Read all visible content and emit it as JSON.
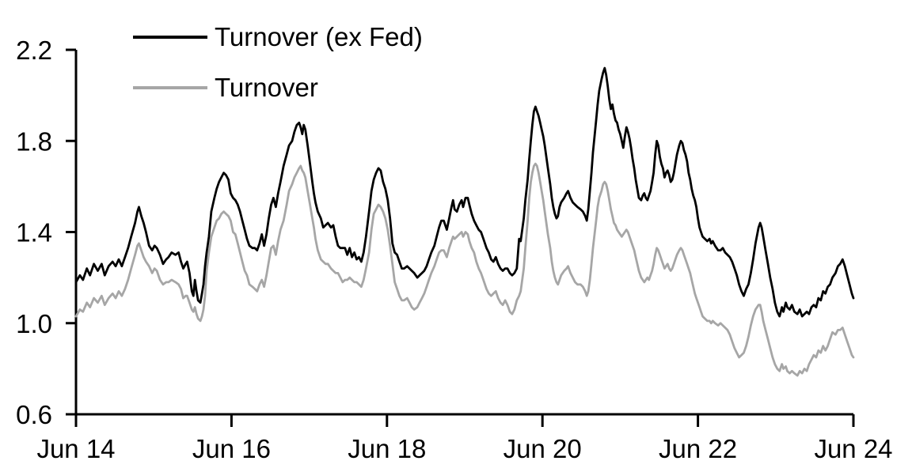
{
  "chart_data": {
    "type": "line",
    "title": "",
    "xlabel": "",
    "ylabel": "",
    "grid": false,
    "legend_position": "top-left-inside",
    "x_axis": {
      "unit": "years since Jun 2014",
      "tick_positions": [
        0,
        2,
        4,
        6,
        8,
        10
      ],
      "tick_labels": [
        "Jun 14",
        "Jun 16",
        "Jun 18",
        "Jun 20",
        "Jun 22",
        "Jun 24"
      ]
    },
    "y_axis": {
      "range": [
        0.6,
        2.2
      ],
      "tick_values": [
        0.6,
        1.0,
        1.4,
        1.8,
        2.2
      ],
      "tick_labels": [
        "0.6",
        "1.0",
        "1.4",
        "1.8",
        "2.2"
      ]
    },
    "x": [
      0,
      0.05,
      0.09,
      0.14,
      0.18,
      0.23,
      0.28,
      0.33,
      0.37,
      0.42,
      0.47,
      0.51,
      0.55,
      0.59,
      0.63,
      0.67,
      0.71,
      0.76,
      0.79,
      0.81,
      0.84,
      0.87,
      0.9,
      0.94,
      0.98,
      1.01,
      1.04,
      1.08,
      1.12,
      1.16,
      1.19,
      1.23,
      1.28,
      1.32,
      1.35,
      1.38,
      1.41,
      1.43,
      1.46,
      1.49,
      1.51,
      1.53,
      1.55,
      1.57,
      1.6,
      1.62,
      1.64,
      1.66,
      1.68,
      1.71,
      1.74,
      1.78,
      1.81,
      1.84,
      1.87,
      1.9,
      1.93,
      1.96,
      1.99,
      2.02,
      2.05,
      2.08,
      2.11,
      2.14,
      2.17,
      2.2,
      2.23,
      2.27,
      2.3,
      2.33,
      2.36,
      2.39,
      2.42,
      2.45,
      2.48,
      2.51,
      2.54,
      2.57,
      2.6,
      2.63,
      2.67,
      2.71,
      2.74,
      2.78,
      2.81,
      2.84,
      2.87,
      2.89,
      2.91,
      2.93,
      2.95,
      2.98,
      3.01,
      3.04,
      3.06,
      3.08,
      3.11,
      3.15,
      3.18,
      3.21,
      3.24,
      3.28,
      3.31,
      3.34,
      3.37,
      3.4,
      3.43,
      3.46,
      3.49,
      3.52,
      3.55,
      3.58,
      3.61,
      3.64,
      3.67,
      3.7,
      3.73,
      3.77,
      3.8,
      3.83,
      3.86,
      3.89,
      3.92,
      3.95,
      3.98,
      4.01,
      4.04,
      4.07,
      4.1,
      4.13,
      4.16,
      4.19,
      4.22,
      4.26,
      4.29,
      4.32,
      4.35,
      4.39,
      4.42,
      4.45,
      4.48,
      4.51,
      4.54,
      4.57,
      4.61,
      4.64,
      4.67,
      4.7,
      4.73,
      4.77,
      4.8,
      4.83,
      4.85,
      4.87,
      4.9,
      4.93,
      4.96,
      4.98,
      5.01,
      5.04,
      5.06,
      5.09,
      5.12,
      5.15,
      5.18,
      5.21,
      5.24,
      5.28,
      5.31,
      5.34,
      5.37,
      5.4,
      5.43,
      5.46,
      5.49,
      5.52,
      5.55,
      5.58,
      5.61,
      5.64,
      5.67,
      5.7,
      5.72,
      5.76,
      5.78,
      5.81,
      5.83,
      5.85,
      5.87,
      5.89,
      5.91,
      5.93,
      5.95,
      5.97,
      5.99,
      6.01,
      6.03,
      6.05,
      6.07,
      6.1,
      6.12,
      6.14,
      6.16,
      6.18,
      6.2,
      6.22,
      6.24,
      6.28,
      6.31,
      6.33,
      6.36,
      6.39,
      6.42,
      6.45,
      6.49,
      6.52,
      6.55,
      6.57,
      6.59,
      6.61,
      6.63,
      6.65,
      6.67,
      6.69,
      6.71,
      6.73,
      6.76,
      6.78,
      6.8,
      6.82,
      6.84,
      6.86,
      6.88,
      6.9,
      6.92,
      6.94,
      6.96,
      6.98,
      7,
      7.02,
      7.04,
      7.06,
      7.08,
      7.1,
      7.12,
      7.14,
      7.16,
      7.18,
      7.2,
      7.22,
      7.24,
      7.27,
      7.29,
      7.31,
      7.33,
      7.35,
      7.37,
      7.39,
      7.41,
      7.43,
      7.45,
      7.47,
      7.49,
      7.51,
      7.53,
      7.55,
      7.57,
      7.59,
      7.61,
      7.63,
      7.65,
      7.67,
      7.69,
      7.71,
      7.73,
      7.76,
      7.78,
      7.8,
      7.82,
      7.84,
      7.86,
      7.88,
      7.9,
      7.92,
      7.94,
      7.96,
      7.98,
      8,
      8.02,
      8.04,
      8.06,
      8.09,
      8.12,
      8.15,
      8.17,
      8.19,
      8.22,
      8.26,
      8.29,
      8.32,
      8.35,
      8.38,
      8.41,
      8.44,
      8.47,
      8.5,
      8.53,
      8.56,
      8.59,
      8.62,
      8.65,
      8.68,
      8.71,
      8.74,
      8.78,
      8.8,
      8.82,
      8.84,
      8.87,
      8.9,
      8.93,
      8.96,
      8.99,
      9.02,
      9.05,
      9.08,
      9.1,
      9.13,
      9.15,
      9.18,
      9.21,
      9.24,
      9.28,
      9.31,
      9.34,
      9.37,
      9.4,
      9.43,
      9.46,
      9.49,
      9.52,
      9.55,
      9.58,
      9.61,
      9.64,
      9.67,
      9.7,
      9.73,
      9.77,
      9.8,
      9.83,
      9.86,
      9.89,
      9.92,
      9.95,
      9.98,
      10
    ],
    "series": [
      {
        "name": "Turnover (ex Fed)",
        "color": "#000000",
        "values": [
          1.18,
          1.21,
          1.19,
          1.24,
          1.21,
          1.26,
          1.23,
          1.26,
          1.21,
          1.25,
          1.27,
          1.25,
          1.28,
          1.25,
          1.29,
          1.33,
          1.38,
          1.44,
          1.49,
          1.51,
          1.47,
          1.44,
          1.4,
          1.34,
          1.32,
          1.34,
          1.33,
          1.3,
          1.26,
          1.28,
          1.29,
          1.31,
          1.3,
          1.31,
          1.27,
          1.24,
          1.26,
          1.27,
          1.22,
          1.14,
          1.12,
          1.19,
          1.14,
          1.1,
          1.09,
          1.13,
          1.17,
          1.25,
          1.31,
          1.38,
          1.49,
          1.55,
          1.59,
          1.62,
          1.64,
          1.66,
          1.65,
          1.63,
          1.57,
          1.55,
          1.54,
          1.52,
          1.49,
          1.45,
          1.41,
          1.37,
          1.34,
          1.33,
          1.33,
          1.32,
          1.35,
          1.39,
          1.34,
          1.39,
          1.46,
          1.52,
          1.55,
          1.51,
          1.57,
          1.62,
          1.69,
          1.74,
          1.78,
          1.8,
          1.84,
          1.87,
          1.88,
          1.86,
          1.83,
          1.87,
          1.85,
          1.78,
          1.7,
          1.62,
          1.57,
          1.53,
          1.49,
          1.46,
          1.42,
          1.43,
          1.44,
          1.42,
          1.43,
          1.38,
          1.34,
          1.33,
          1.33,
          1.33,
          1.3,
          1.33,
          1.29,
          1.31,
          1.28,
          1.29,
          1.27,
          1.31,
          1.38,
          1.49,
          1.58,
          1.63,
          1.66,
          1.68,
          1.67,
          1.62,
          1.59,
          1.54,
          1.46,
          1.35,
          1.31,
          1.3,
          1.27,
          1.24,
          1.24,
          1.25,
          1.24,
          1.23,
          1.22,
          1.2,
          1.21,
          1.22,
          1.23,
          1.25,
          1.28,
          1.31,
          1.34,
          1.38,
          1.42,
          1.45,
          1.45,
          1.41,
          1.46,
          1.51,
          1.54,
          1.5,
          1.49,
          1.52,
          1.54,
          1.51,
          1.55,
          1.55,
          1.52,
          1.48,
          1.45,
          1.43,
          1.41,
          1.4,
          1.37,
          1.33,
          1.31,
          1.28,
          1.27,
          1.29,
          1.26,
          1.24,
          1.23,
          1.24,
          1.24,
          1.22,
          1.21,
          1.22,
          1.24,
          1.37,
          1.36,
          1.46,
          1.54,
          1.63,
          1.72,
          1.8,
          1.87,
          1.93,
          1.95,
          1.93,
          1.91,
          1.88,
          1.85,
          1.82,
          1.78,
          1.73,
          1.68,
          1.61,
          1.55,
          1.51,
          1.48,
          1.46,
          1.47,
          1.51,
          1.53,
          1.55,
          1.57,
          1.58,
          1.55,
          1.53,
          1.52,
          1.51,
          1.5,
          1.49,
          1.47,
          1.45,
          1.5,
          1.58,
          1.66,
          1.75,
          1.82,
          1.89,
          1.96,
          2.02,
          2.07,
          2.1,
          2.12,
          2.09,
          2.04,
          1.98,
          1.94,
          1.96,
          1.92,
          1.89,
          1.88,
          1.85,
          1.83,
          1.8,
          1.77,
          1.82,
          1.86,
          1.84,
          1.81,
          1.77,
          1.72,
          1.68,
          1.63,
          1.59,
          1.55,
          1.54,
          1.56,
          1.57,
          1.55,
          1.54,
          1.56,
          1.58,
          1.62,
          1.66,
          1.74,
          1.8,
          1.78,
          1.73,
          1.7,
          1.68,
          1.64,
          1.66,
          1.67,
          1.65,
          1.62,
          1.63,
          1.66,
          1.7,
          1.74,
          1.78,
          1.8,
          1.79,
          1.76,
          1.74,
          1.71,
          1.66,
          1.63,
          1.59,
          1.56,
          1.54,
          1.51,
          1.46,
          1.42,
          1.4,
          1.38,
          1.37,
          1.36,
          1.37,
          1.35,
          1.36,
          1.34,
          1.32,
          1.32,
          1.33,
          1.31,
          1.3,
          1.29,
          1.27,
          1.24,
          1.21,
          1.17,
          1.14,
          1.12,
          1.15,
          1.17,
          1.22,
          1.28,
          1.35,
          1.42,
          1.44,
          1.42,
          1.38,
          1.32,
          1.26,
          1.2,
          1.15,
          1.09,
          1.05,
          1.03,
          1.07,
          1.05,
          1.09,
          1.07,
          1.06,
          1.08,
          1.05,
          1.04,
          1.06,
          1.03,
          1.04,
          1.05,
          1.04,
          1.07,
          1.08,
          1.07,
          1.11,
          1.1,
          1.14,
          1.13,
          1.16,
          1.17,
          1.2,
          1.22,
          1.25,
          1.26,
          1.28,
          1.25,
          1.21,
          1.17,
          1.13,
          1.11
        ]
      },
      {
        "name": "Turnover",
        "color": "#a6a6a6",
        "values": [
          1.03,
          1.06,
          1.05,
          1.09,
          1.07,
          1.11,
          1.09,
          1.12,
          1.08,
          1.11,
          1.13,
          1.11,
          1.14,
          1.12,
          1.15,
          1.19,
          1.24,
          1.3,
          1.34,
          1.35,
          1.32,
          1.29,
          1.27,
          1.25,
          1.22,
          1.24,
          1.23,
          1.19,
          1.17,
          1.18,
          1.18,
          1.19,
          1.18,
          1.17,
          1.15,
          1.11,
          1.12,
          1.12,
          1.09,
          1.06,
          1.05,
          1.07,
          1.04,
          1.02,
          1.01,
          1.03,
          1.06,
          1.12,
          1.23,
          1.31,
          1.38,
          1.42,
          1.45,
          1.46,
          1.48,
          1.49,
          1.48,
          1.47,
          1.45,
          1.4,
          1.39,
          1.35,
          1.31,
          1.27,
          1.23,
          1.21,
          1.17,
          1.16,
          1.15,
          1.14,
          1.17,
          1.19,
          1.16,
          1.21,
          1.27,
          1.33,
          1.34,
          1.3,
          1.36,
          1.41,
          1.45,
          1.52,
          1.58,
          1.61,
          1.64,
          1.66,
          1.68,
          1.69,
          1.67,
          1.66,
          1.64,
          1.58,
          1.52,
          1.46,
          1.42,
          1.37,
          1.32,
          1.28,
          1.27,
          1.26,
          1.26,
          1.24,
          1.23,
          1.22,
          1.22,
          1.2,
          1.18,
          1.19,
          1.19,
          1.2,
          1.19,
          1.18,
          1.18,
          1.17,
          1.16,
          1.19,
          1.24,
          1.31,
          1.41,
          1.48,
          1.5,
          1.52,
          1.51,
          1.49,
          1.46,
          1.41,
          1.34,
          1.26,
          1.18,
          1.15,
          1.12,
          1.1,
          1.1,
          1.11,
          1.09,
          1.07,
          1.06,
          1.07,
          1.09,
          1.11,
          1.13,
          1.16,
          1.19,
          1.22,
          1.25,
          1.28,
          1.31,
          1.32,
          1.32,
          1.29,
          1.33,
          1.36,
          1.38,
          1.37,
          1.38,
          1.39,
          1.4,
          1.38,
          1.4,
          1.39,
          1.36,
          1.33,
          1.31,
          1.27,
          1.24,
          1.22,
          1.19,
          1.15,
          1.13,
          1.12,
          1.13,
          1.14,
          1.11,
          1.09,
          1.08,
          1.1,
          1.08,
          1.05,
          1.04,
          1.06,
          1.1,
          1.12,
          1.14,
          1.24,
          1.33,
          1.45,
          1.55,
          1.62,
          1.66,
          1.69,
          1.7,
          1.69,
          1.66,
          1.62,
          1.58,
          1.54,
          1.49,
          1.44,
          1.39,
          1.33,
          1.27,
          1.23,
          1.2,
          1.18,
          1.17,
          1.19,
          1.21,
          1.23,
          1.24,
          1.25,
          1.22,
          1.2,
          1.18,
          1.17,
          1.17,
          1.16,
          1.14,
          1.12,
          1.14,
          1.19,
          1.26,
          1.33,
          1.39,
          1.45,
          1.51,
          1.55,
          1.58,
          1.61,
          1.62,
          1.61,
          1.58,
          1.54,
          1.5,
          1.47,
          1.44,
          1.43,
          1.41,
          1.4,
          1.39,
          1.38,
          1.39,
          1.4,
          1.41,
          1.4,
          1.38,
          1.36,
          1.34,
          1.32,
          1.29,
          1.26,
          1.23,
          1.2,
          1.19,
          1.18,
          1.19,
          1.2,
          1.19,
          1.21,
          1.23,
          1.26,
          1.3,
          1.33,
          1.32,
          1.3,
          1.28,
          1.26,
          1.24,
          1.25,
          1.26,
          1.24,
          1.23,
          1.24,
          1.26,
          1.28,
          1.3,
          1.32,
          1.33,
          1.32,
          1.3,
          1.28,
          1.26,
          1.24,
          1.22,
          1.19,
          1.16,
          1.13,
          1.11,
          1.09,
          1.07,
          1.05,
          1.03,
          1.02,
          1.01,
          1.01,
          1,
          1.01,
          1,
          0.99,
          1,
          0.99,
          0.98,
          0.97,
          0.95,
          0.92,
          0.89,
          0.87,
          0.85,
          0.86,
          0.87,
          0.9,
          0.94,
          0.99,
          1.03,
          1.06,
          1.08,
          1.08,
          1.05,
          1.01,
          0.97,
          0.93,
          0.89,
          0.85,
          0.82,
          0.8,
          0.79,
          0.82,
          0.8,
          0.81,
          0.79,
          0.78,
          0.79,
          0.78,
          0.77,
          0.79,
          0.78,
          0.8,
          0.79,
          0.82,
          0.84,
          0.86,
          0.85,
          0.88,
          0.87,
          0.9,
          0.88,
          0.9,
          0.93,
          0.96,
          0.95,
          0.97,
          0.97,
          0.98,
          0.95,
          0.92,
          0.89,
          0.86,
          0.85
        ]
      }
    ]
  },
  "colors": {
    "background": "#ffffff",
    "axis": "#000000",
    "text": "#000000",
    "series_primary": "#000000",
    "series_secondary": "#a6a6a6"
  }
}
